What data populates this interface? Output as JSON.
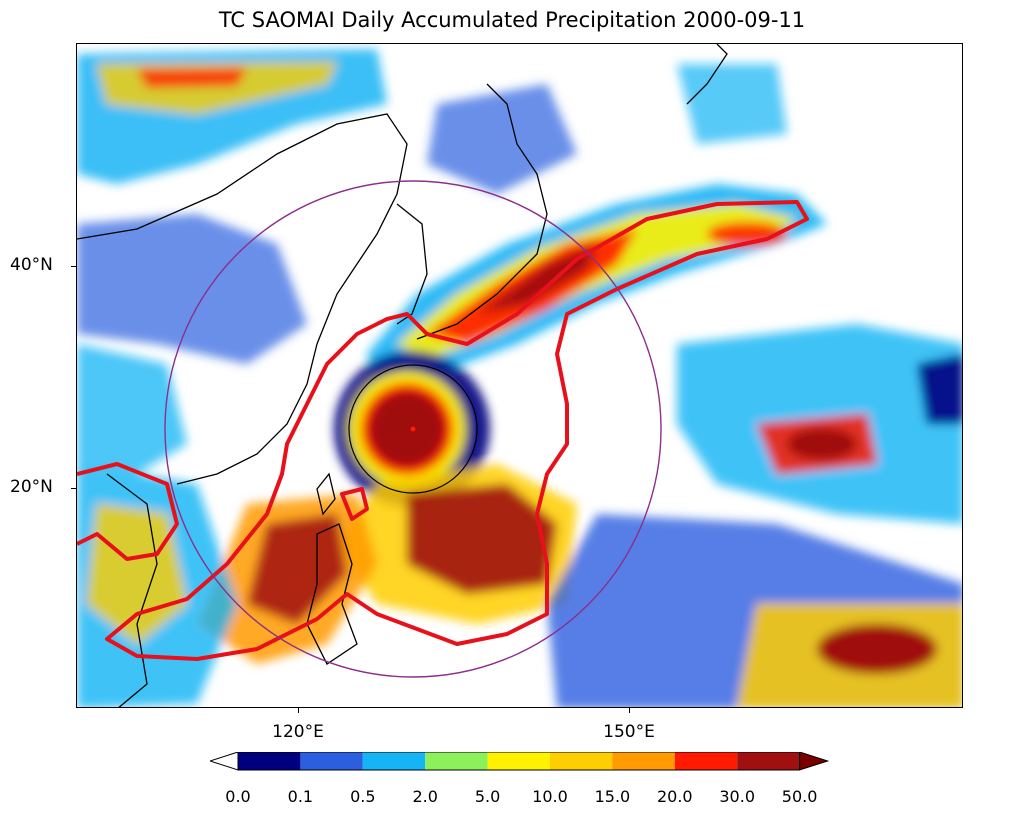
{
  "title": "TC SAOMAI Daily Accumulated Precipitation 2000-09-11",
  "map": {
    "y_ticks": [
      "40°N",
      "20°N"
    ],
    "x_ticks": [
      "120°E",
      "150°E"
    ]
  },
  "colorbar": {
    "labels": [
      "0.0",
      "0.1",
      "0.5",
      "2.0",
      "5.0",
      "10.0",
      "15.0",
      "20.0",
      "30.0",
      "50.0"
    ],
    "colors": [
      "#00007f",
      "#2b5fe0",
      "#14b4f5",
      "#8cf05a",
      "#fff200",
      "#ffce00",
      "#ff9a00",
      "#ff1a00",
      "#a01010",
      "#7a0000"
    ],
    "under_color": "#ffffff",
    "over_color": "#7a0000"
  },
  "overlays": {
    "rain_contour_color": "#e8101a",
    "circle_color": "#8b2f8b",
    "coast_color": "#000000"
  }
}
